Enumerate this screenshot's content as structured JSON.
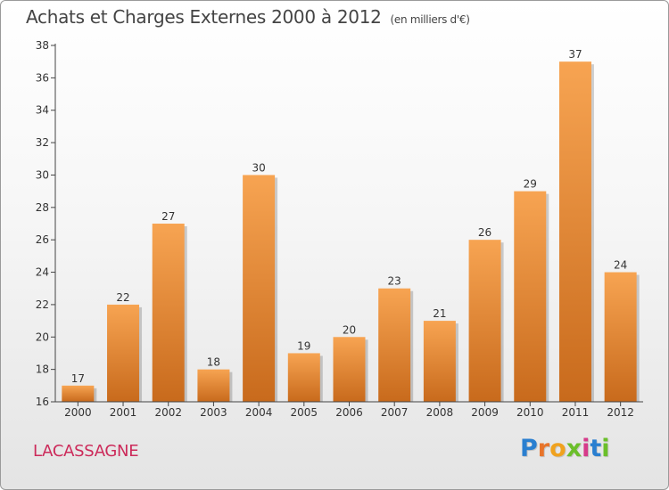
{
  "chart_data": {
    "type": "bar",
    "title": "Achats et Charges Externes 2000 à 2012",
    "subtitle": "(en milliers d'€)",
    "categories": [
      "2000",
      "2001",
      "2002",
      "2003",
      "2004",
      "2005",
      "2006",
      "2007",
      "2008",
      "2009",
      "2010",
      "2011",
      "2012"
    ],
    "values": [
      17,
      22,
      27,
      18,
      30,
      19,
      20,
      23,
      21,
      26,
      29,
      37,
      24
    ],
    "ylim": [
      16,
      38
    ],
    "yticks": [
      16,
      18,
      20,
      22,
      24,
      26,
      28,
      30,
      32,
      34,
      36,
      38
    ],
    "grid": false,
    "bar_color_top": "#f7a452",
    "bar_color_bottom": "#c86a1c"
  },
  "footer": {
    "commune": "LACASSAGNE",
    "logo": {
      "letters": [
        "P",
        "r",
        "o",
        "x",
        "i",
        "t",
        "i"
      ],
      "colors": [
        "#2a7fd0",
        "#e8742a",
        "#f0a21e",
        "#6bbf2a",
        "#d63a8a",
        "#2a7fd0",
        "#6bbf2a"
      ]
    }
  }
}
